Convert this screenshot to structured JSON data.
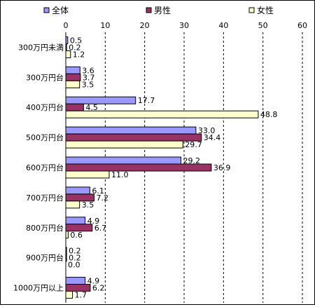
{
  "chart_data": {
    "type": "bar",
    "orientation": "horizontal",
    "categories": [
      "300万円未満",
      "300万円台",
      "400万円台",
      "500万円台",
      "600万円台",
      "700万円台",
      "800万円台",
      "900万円台",
      "1000万円以上"
    ],
    "series": [
      {
        "name": "全体",
        "color": "#9999ff",
        "values": [
          0.5,
          3.6,
          17.7,
          33.0,
          29.2,
          6.1,
          4.9,
          0.2,
          4.9
        ],
        "labels": [
          "0.5",
          "3.6",
          "17.7",
          "33.0",
          "29.2",
          "6.1",
          "4.9",
          "0.2",
          "4.9"
        ]
      },
      {
        "name": "男性",
        "color": "#993366",
        "values": [
          0.2,
          3.7,
          4.5,
          34.4,
          36.9,
          7.2,
          6.7,
          0.2,
          6.2
        ],
        "labels": [
          "0.2",
          "3.7",
          "4.5",
          "34.4",
          "36.9",
          "7.2",
          "6.7",
          "0.2",
          "6.2"
        ]
      },
      {
        "name": "女性",
        "color": "#ffffcc",
        "values": [
          1.2,
          3.5,
          48.8,
          29.7,
          11.0,
          3.5,
          0.6,
          0.0,
          1.7
        ],
        "labels": [
          "1.2",
          "3.5",
          "48.8",
          "29.7",
          "11.0",
          "3.5",
          "0.6",
          "0.0",
          "1.7"
        ]
      }
    ],
    "xlim": [
      0,
      60
    ],
    "ticks": [
      "0",
      "10",
      "20",
      "30",
      "40",
      "50",
      "60"
    ],
    "tick_values": [
      0,
      10,
      20,
      30,
      40,
      50,
      60
    ],
    "gridlines": "vertical dashed",
    "legend_position": "top"
  }
}
